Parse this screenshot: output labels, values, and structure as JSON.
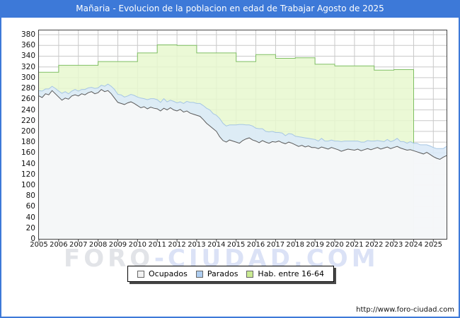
{
  "header": {
    "title": "Mañaria - Evolucion de la poblacion en edad de Trabajar Agosto de 2025",
    "bg_color": "#3d79d8",
    "text_color": "#ffffff"
  },
  "watermark": {
    "part1": "FORO",
    "part2": "-CIUDAD.COM"
  },
  "footer": {
    "url": "http://www.foro-ciudad.com"
  },
  "legend": {
    "items": [
      {
        "label": "Ocupados",
        "fill": "#f2f2f2",
        "border": "#666666"
      },
      {
        "label": "Parados",
        "fill": "#aecdf0",
        "border": "#666666"
      },
      {
        "label": "Hab. entre 16-64",
        "fill": "#c9ea92",
        "border": "#666666"
      }
    ]
  },
  "chart_data": {
    "type": "area",
    "title": "Mañaria - Evolucion de la poblacion en edad de Trabajar Agosto de 2025",
    "xlabel": "",
    "ylabel": "",
    "x_range": [
      2005,
      2025.67
    ],
    "ylim": [
      0,
      388
    ],
    "grid": true,
    "legend_position": "bottom",
    "y_ticks": [
      0,
      20,
      40,
      60,
      80,
      100,
      120,
      140,
      160,
      180,
      200,
      220,
      240,
      260,
      280,
      300,
      320,
      340,
      360,
      380
    ],
    "x_labels": [
      "2005",
      "2006",
      "2007",
      "2008",
      "2009",
      "2010",
      "2011",
      "2012",
      "2013",
      "2014",
      "2015",
      "2016",
      "2017",
      "2018",
      "2019",
      "2020",
      "2021",
      "2022",
      "2023",
      "2024",
      "2025"
    ],
    "series": {
      "hab": {
        "name": "Hab. entre 16-64",
        "style": "step-area-annual",
        "years": [
          2005,
          2006,
          2007,
          2008,
          2009,
          2010,
          2011,
          2012,
          2013,
          2014,
          2015,
          2016,
          2017,
          2018,
          2019,
          2020,
          2021,
          2022,
          2023
        ],
        "values": [
          310,
          323,
          323,
          330,
          330,
          346,
          361,
          360,
          346,
          346,
          330,
          343,
          336,
          337,
          325,
          322,
          322,
          314,
          315
        ],
        "data_end": 2024.0,
        "line": "#7fbf63",
        "fill": "#e7f8cf"
      },
      "ocupados": {
        "name": "Ocupados",
        "style": "area",
        "start": 2005.0,
        "step": 0.166667,
        "values": [
          266,
          263,
          270,
          268,
          276,
          270,
          264,
          258,
          262,
          260,
          266,
          268,
          266,
          270,
          268,
          272,
          274,
          270,
          272,
          278,
          274,
          276,
          270,
          262,
          254,
          252,
          250,
          253,
          255,
          252,
          248,
          244,
          246,
          242,
          245,
          243,
          242,
          238,
          243,
          240,
          244,
          240,
          238,
          241,
          236,
          238,
          234,
          232,
          230,
          228,
          222,
          215,
          210,
          205,
          200,
          190,
          183,
          180,
          184,
          182,
          180,
          178,
          183,
          186,
          188,
          184,
          182,
          179,
          183,
          180,
          178,
          181,
          180,
          182,
          179,
          177,
          180,
          178,
          175,
          172,
          174,
          171,
          173,
          170,
          170,
          168,
          171,
          169,
          167,
          170,
          168,
          166,
          163,
          165,
          167,
          166,
          165,
          167,
          164,
          166,
          168,
          166,
          168,
          170,
          167,
          169,
          171,
          168,
          170,
          172,
          169,
          167,
          165,
          166,
          164,
          162,
          160,
          158,
          161,
          157,
          153,
          150,
          148,
          152,
          155
        ],
        "line": "#5a5a5a",
        "fill": "#f8f8f8"
      },
      "parados": {
        "name": "Parados",
        "style": "area-stacked-on-ocupados",
        "start": 2005.0,
        "step": 0.166667,
        "values": [
          10,
          12,
          9,
          11,
          8,
          10,
          11,
          13,
          12,
          10,
          9,
          10,
          9,
          8,
          10,
          9,
          8,
          10,
          9,
          8,
          10,
          12,
          14,
          16,
          15,
          16,
          14,
          13,
          14,
          15,
          16,
          18,
          15,
          17,
          16,
          18,
          17,
          16,
          18,
          15,
          14,
          16,
          15,
          14,
          16,
          18,
          20,
          22,
          22,
          24,
          26,
          28,
          30,
          28,
          30,
          34,
          32,
          30,
          28,
          30,
          32,
          35,
          30,
          26,
          24,
          26,
          24,
          26,
          22,
          20,
          21,
          19,
          18,
          16,
          18,
          15,
          16,
          17,
          16,
          18,
          15,
          17,
          14,
          16,
          15,
          14,
          16,
          13,
          15,
          14,
          14,
          16,
          18,
          17,
          15,
          16,
          17,
          15,
          16,
          14,
          15,
          16,
          14,
          13,
          15,
          12,
          14,
          13,
          13,
          15,
          12,
          14,
          13,
          15,
          14,
          16,
          15,
          17,
          14,
          16,
          17,
          18,
          20,
          16,
          17
        ],
        "line": "#a6c6e4",
        "fill": "#dbeaf8"
      }
    },
    "grid_color": "#c9c9c9",
    "plot_border_color": "#444444"
  }
}
